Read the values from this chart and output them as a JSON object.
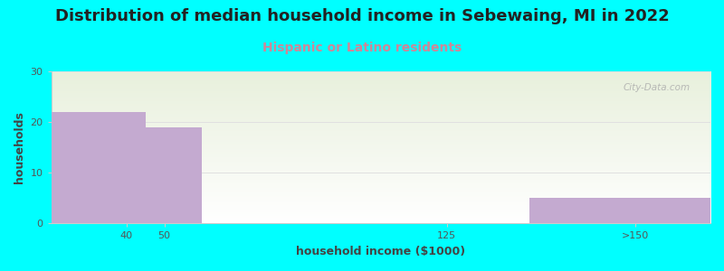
{
  "title": "Distribution of median household income in Sebewaing, MI in 2022",
  "subtitle": "Hispanic or Latino residents",
  "xlabel": "household income ($1000)",
  "ylabel": "households",
  "background_color": "#00FFFF",
  "plot_bg_top": "#e8f0dc",
  "plot_bg_bottom": "#ffffff",
  "bar_color": "#c4aad0",
  "categories": [
    "40",
    "50",
    "125",
    ">150"
  ],
  "values": [
    22,
    19,
    0,
    5
  ],
  "ylim": [
    0,
    30
  ],
  "yticks": [
    0,
    10,
    20,
    30
  ],
  "title_fontsize": 13,
  "subtitle_fontsize": 10,
  "subtitle_color": "#cc8899",
  "axis_label_fontsize": 9,
  "tick_fontsize": 8,
  "watermark_text": "City-Data.com",
  "watermark_color": "#aaaaaa",
  "title_color": "#222222"
}
